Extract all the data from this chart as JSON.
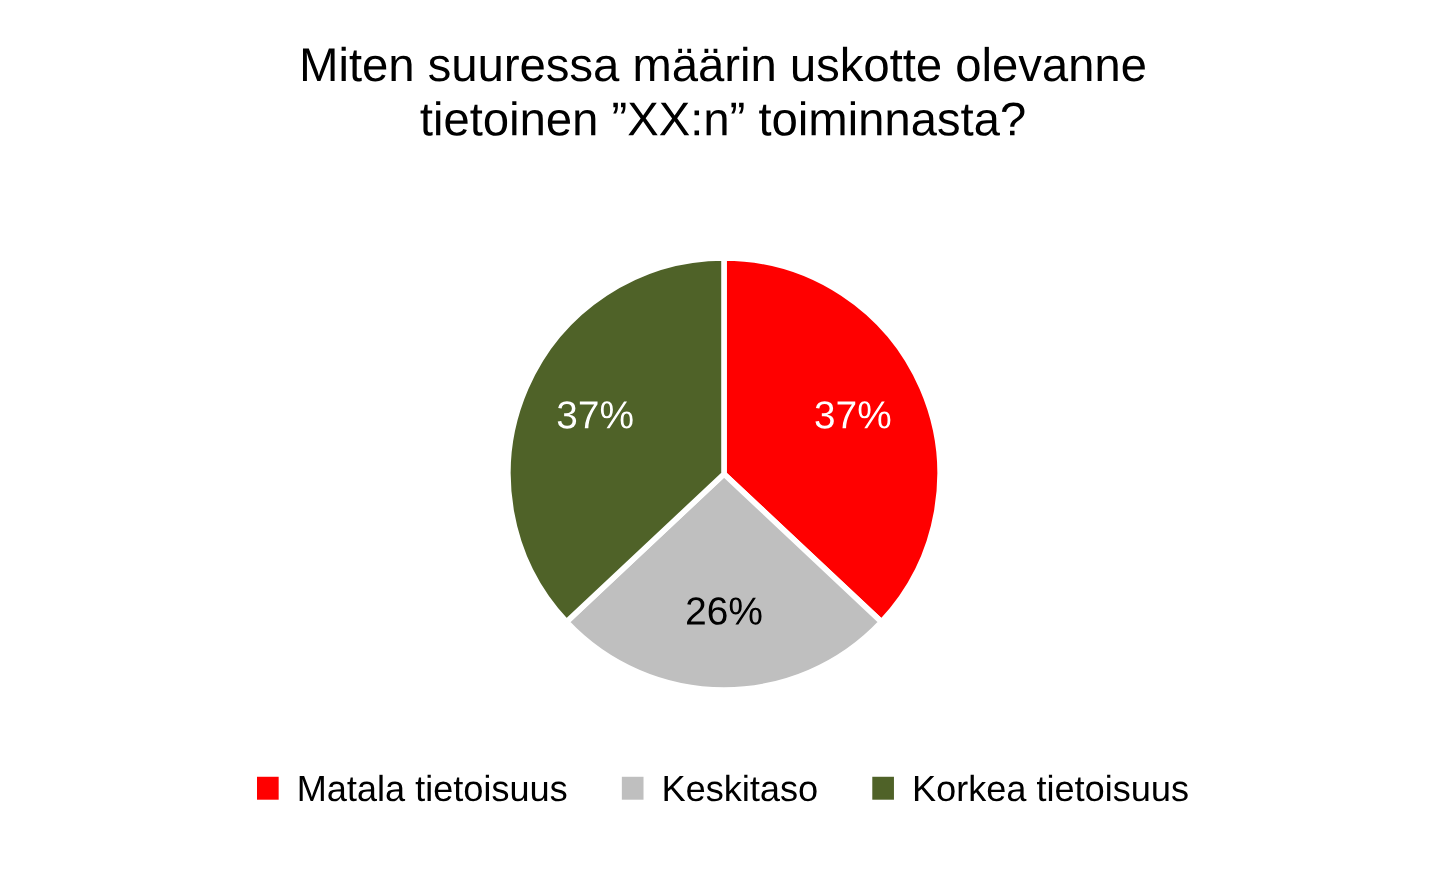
{
  "chart_data": {
    "type": "pie",
    "title": "Miten suuressa määrin uskotte olevanne\ntietoinen ”XX:n” toiminnasta?",
    "categories": [
      "Matala tietoisuus",
      "Keskitaso",
      "Korkea tietoisuus"
    ],
    "values": [
      37,
      26,
      37
    ],
    "colors": [
      "#ff0000",
      "#bfbfbf",
      "#4f6228"
    ],
    "value_labels": [
      "37%",
      "26%",
      "37%"
    ],
    "legend": "bottom"
  }
}
